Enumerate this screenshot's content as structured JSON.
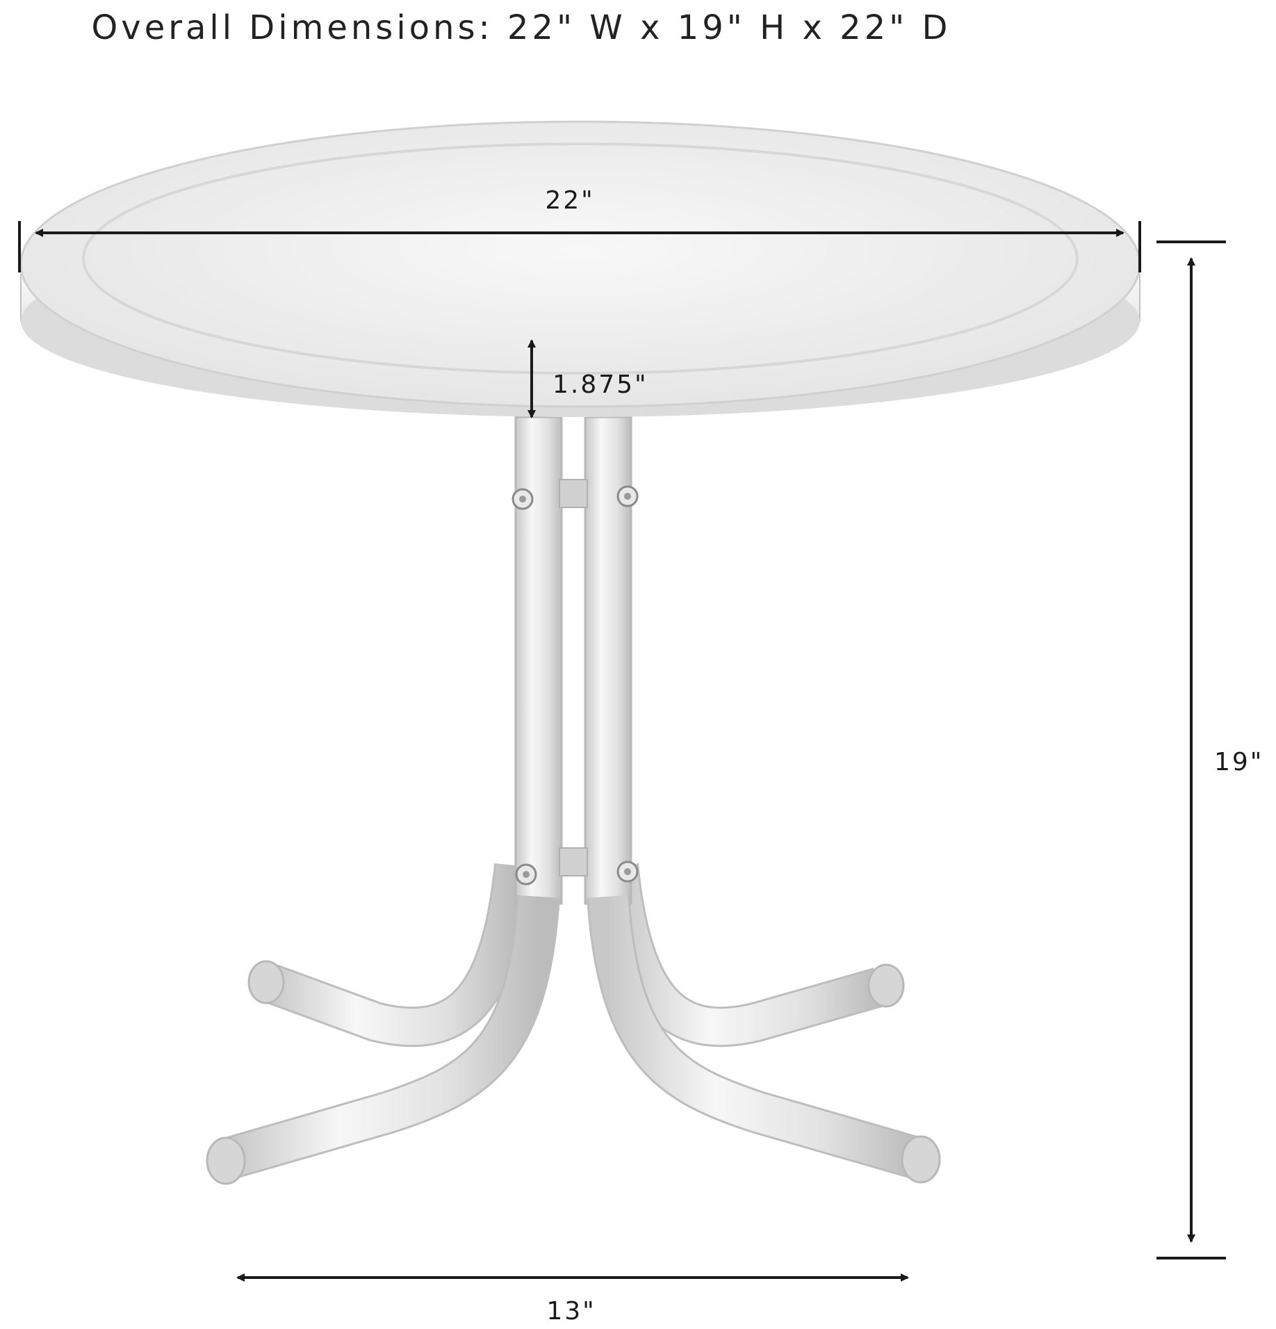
{
  "title": "Overall Dimensions: 22\" W x 19\" H x 22\" D",
  "dimensions": {
    "top_width": "22\"",
    "top_thickness": "1.875\"",
    "height": "19\"",
    "base_width": "13\""
  },
  "colors": {
    "ink": "#1a1a1a",
    "table_light": "#f2f2f2",
    "table_mid": "#d9d9d9",
    "table_edge": "#bdbdbd"
  }
}
